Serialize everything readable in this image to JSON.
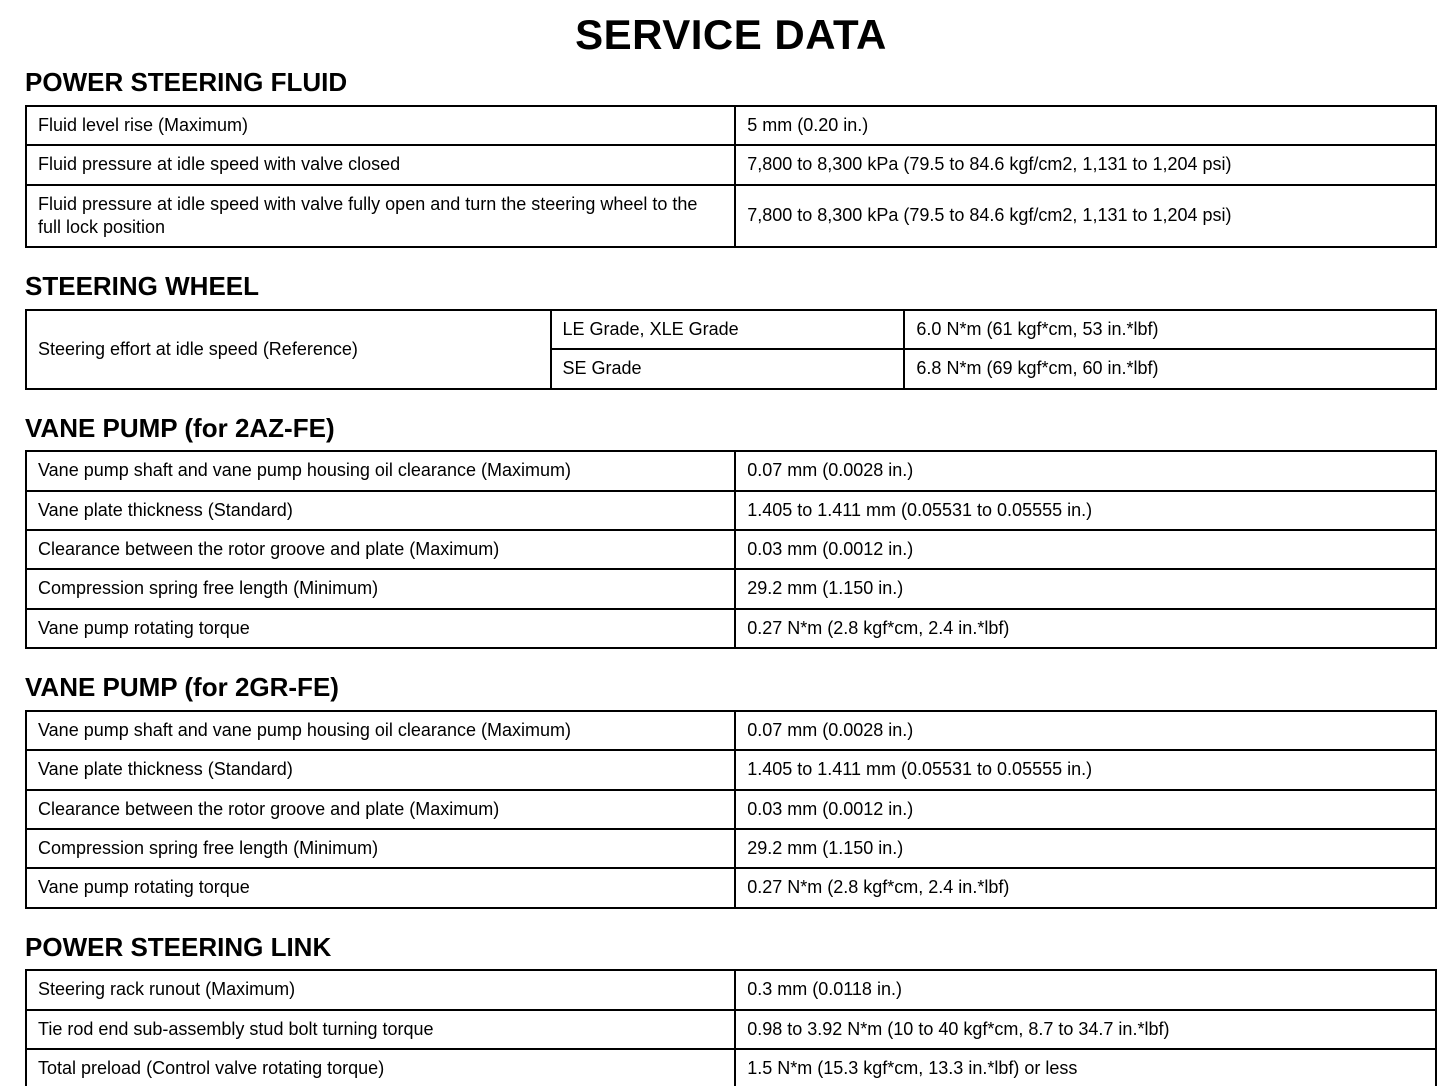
{
  "page": {
    "title": "SERVICE DATA"
  },
  "sections": {
    "power_steering_fluid": {
      "heading": "POWER STEERING FLUID",
      "rows": [
        {
          "label": "Fluid level rise (Maximum)",
          "value": "5 mm (0.20 in.)"
        },
        {
          "label": "Fluid pressure at idle speed with valve closed",
          "value": "7,800 to 8,300 kPa (79.5 to 84.6 kgf/cm2, 1,131 to 1,204 psi)"
        },
        {
          "label": "Fluid pressure at idle speed with valve fully open and turn the steering wheel to the full lock position",
          "value": "7,800 to 8,300 kPa (79.5 to 84.6 kgf/cm2, 1,131 to 1,204 psi)"
        }
      ]
    },
    "steering_wheel": {
      "heading": "STEERING WHEEL",
      "label": "Steering effort at idle speed (Reference)",
      "rows": [
        {
          "grade": "LE Grade, XLE Grade",
          "value": "6.0 N*m (61 kgf*cm, 53 in.*lbf)"
        },
        {
          "grade": "SE Grade",
          "value": "6.8 N*m (69 kgf*cm, 60 in.*lbf)"
        }
      ]
    },
    "vane_pump_2az": {
      "heading": "VANE PUMP (for 2AZ-FE)",
      "rows": [
        {
          "label": "Vane pump shaft and vane pump housing oil clearance (Maximum)",
          "value": "0.07 mm (0.0028 in.)"
        },
        {
          "label": "Vane plate thickness (Standard)",
          "value": "1.405 to 1.411 mm (0.05531 to 0.05555 in.)"
        },
        {
          "label": "Clearance between the rotor groove and plate (Maximum)",
          "value": "0.03 mm (0.0012 in.)"
        },
        {
          "label": "Compression spring free length (Minimum)",
          "value": "29.2 mm (1.150 in.)"
        },
        {
          "label": "Vane pump rotating torque",
          "value": "0.27 N*m (2.8 kgf*cm, 2.4 in.*lbf)"
        }
      ]
    },
    "vane_pump_2gr": {
      "heading": "VANE PUMP (for 2GR-FE)",
      "rows": [
        {
          "label": "Vane pump shaft and vane pump housing oil clearance (Maximum)",
          "value": "0.07 mm (0.0028 in.)"
        },
        {
          "label": "Vane plate thickness (Standard)",
          "value": "1.405 to 1.411 mm (0.05531 to 0.05555 in.)"
        },
        {
          "label": "Clearance between the rotor groove and plate (Maximum)",
          "value": "0.03 mm (0.0012 in.)"
        },
        {
          "label": "Compression spring free length (Minimum)",
          "value": "29.2 mm (1.150 in.)"
        },
        {
          "label": "Vane pump rotating torque",
          "value": "0.27 N*m (2.8 kgf*cm, 2.4 in.*lbf)"
        }
      ]
    },
    "power_steering_link": {
      "heading": "POWER STEERING LINK",
      "rows": [
        {
          "label": "Steering rack runout (Maximum)",
          "value": "0.3 mm (0.0118 in.)"
        },
        {
          "label": "Tie rod end sub-assembly stud bolt turning torque",
          "value": "0.98 to 3.92 N*m (10 to 40 kgf*cm, 8.7 to 34.7 in.*lbf)"
        },
        {
          "label": "Total preload (Control valve rotating torque)",
          "value": "1.5 N*m (15.3 kgf*cm, 13.3 in.*lbf) or less"
        }
      ]
    }
  }
}
